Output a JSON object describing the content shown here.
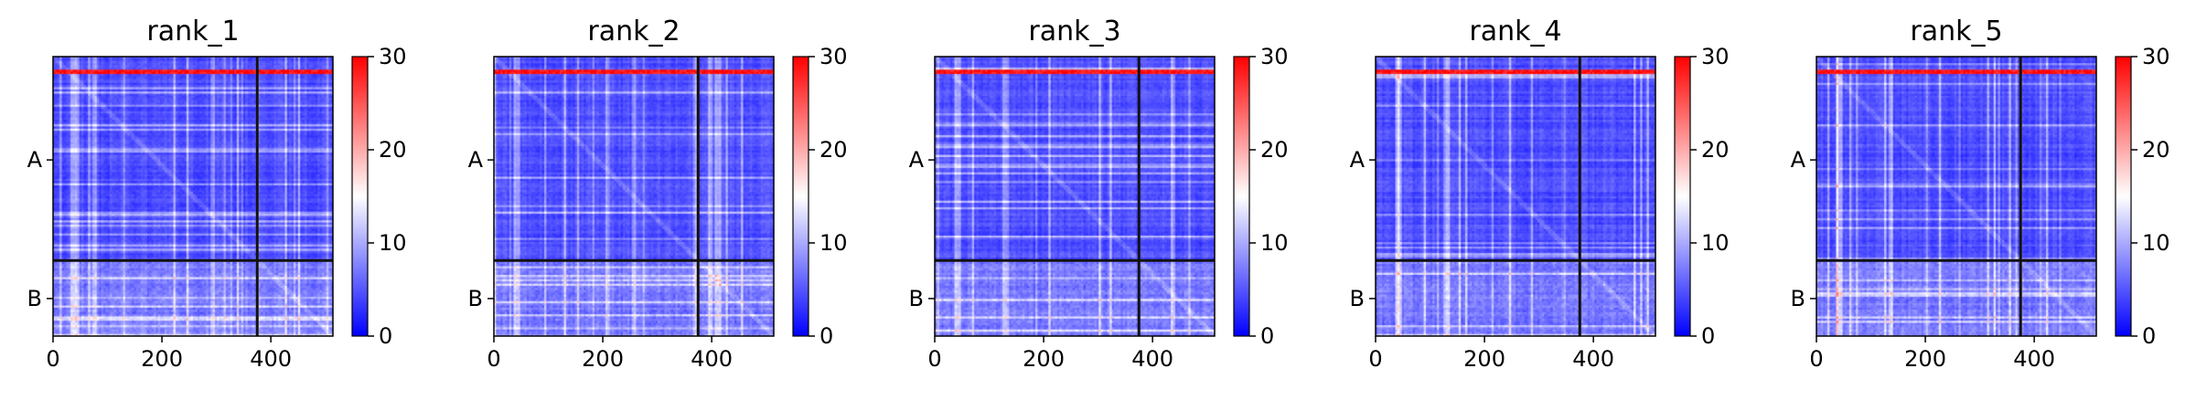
{
  "chart_data": {
    "type": "heatmap",
    "x_ticks": [
      0,
      200,
      400
    ],
    "x_range": [
      0,
      514
    ],
    "segment_boundary_x": 375,
    "segment_boundary_y": 375,
    "y_segments": [
      {
        "label": "A",
        "center": 190
      },
      {
        "label": "B",
        "center": 445
      }
    ],
    "y_range": [
      0,
      514
    ],
    "colorbar": {
      "min": 0,
      "max": 30,
      "ticks": [
        0,
        10,
        20,
        30
      ],
      "colors": [
        "#0000ff",
        "#ffffff",
        "#ff0000"
      ]
    },
    "panels": [
      {
        "title": "rank_1"
      },
      {
        "title": "rank_2"
      },
      {
        "title": "rank_3"
      },
      {
        "title": "rank_4"
      },
      {
        "title": "rank_5"
      }
    ]
  }
}
